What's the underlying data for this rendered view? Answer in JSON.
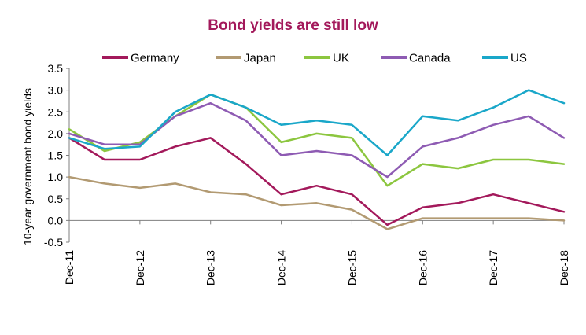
{
  "chart_data": {
    "type": "line",
    "title": "Bond yields are still low",
    "xlabel": "",
    "ylabel": "10-year government bond yields",
    "ylim": [
      -0.5,
      3.5
    ],
    "yticks": [
      "3.5",
      "3.0",
      "2.5",
      "2.0",
      "1.5",
      "1.0",
      "0.5",
      "0.0",
      "-0.5"
    ],
    "x": [
      "Dec-11",
      "Jun-12",
      "Dec-12",
      "Jun-13",
      "Dec-13",
      "Jun-14",
      "Dec-14",
      "Jun-15",
      "Dec-15",
      "Jun-16",
      "Dec-16",
      "Jun-17",
      "Dec-17",
      "Jun-18",
      "Dec-18"
    ],
    "xticks": [
      "Dec-11",
      "Dec-12",
      "Dec-13",
      "Dec-14",
      "Dec-15",
      "Dec-16",
      "Dec-17",
      "Dec-18"
    ],
    "grid": false,
    "legend_position": "top",
    "series": [
      {
        "name": "Germany",
        "color": "#A3195B",
        "values": [
          1.9,
          1.4,
          1.4,
          1.7,
          1.9,
          1.3,
          0.6,
          0.8,
          0.6,
          -0.1,
          0.3,
          0.4,
          0.6,
          0.4,
          0.2
        ]
      },
      {
        "name": "Japan",
        "color": "#B29A72",
        "values": [
          1.0,
          0.85,
          0.75,
          0.85,
          0.65,
          0.6,
          0.35,
          0.4,
          0.25,
          -0.2,
          0.05,
          0.05,
          0.05,
          0.05,
          0.0
        ]
      },
      {
        "name": "UK",
        "color": "#8CC63F",
        "values": [
          2.1,
          1.6,
          1.8,
          2.4,
          2.9,
          2.6,
          1.8,
          2.0,
          1.9,
          0.8,
          1.3,
          1.2,
          1.4,
          1.4,
          1.3
        ]
      },
      {
        "name": "Canada",
        "color": "#8E5BB3",
        "values": [
          2.0,
          1.75,
          1.75,
          2.4,
          2.7,
          2.3,
          1.5,
          1.6,
          1.5,
          1.0,
          1.7,
          1.9,
          2.2,
          2.4,
          1.9
        ]
      },
      {
        "name": "US",
        "color": "#1AA7C9",
        "values": [
          1.9,
          1.65,
          1.7,
          2.5,
          2.9,
          2.6,
          2.2,
          2.3,
          2.2,
          1.5,
          2.4,
          2.3,
          2.6,
          3.0,
          2.7
        ]
      }
    ]
  }
}
